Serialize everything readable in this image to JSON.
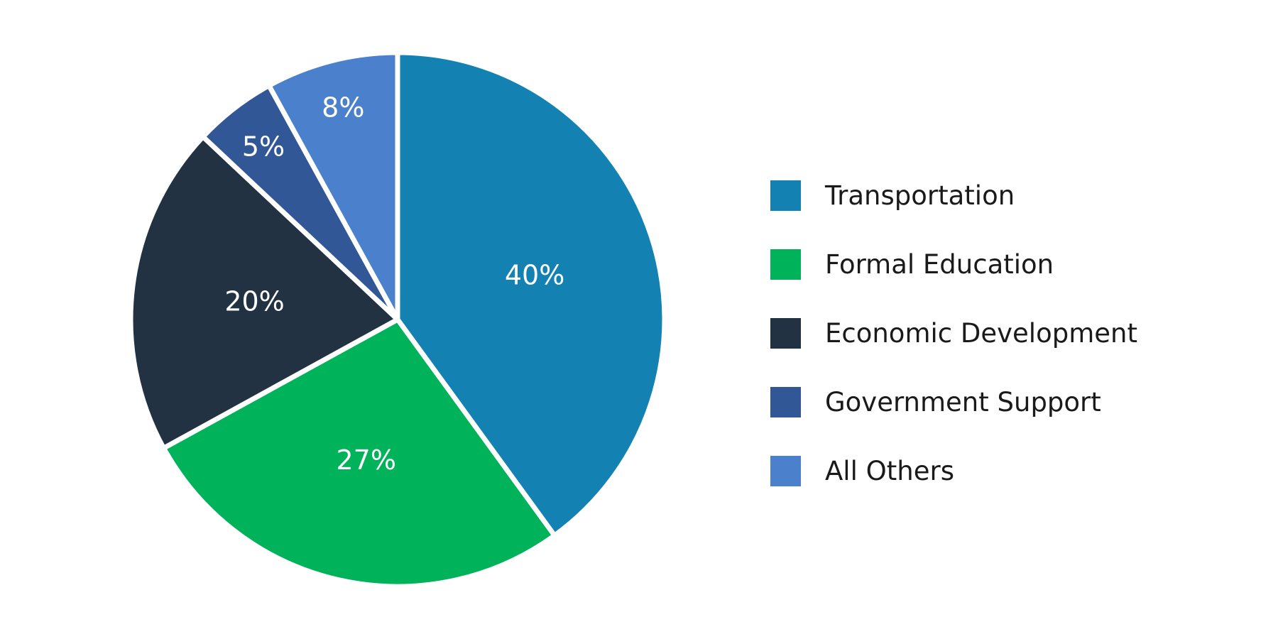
{
  "chart_data": {
    "type": "pie",
    "title": "",
    "categories": [
      "Transportation",
      "Formal Education",
      "Economic Development",
      "Government Support",
      "All Others"
    ],
    "values": [
      40,
      27,
      20,
      5,
      8
    ],
    "labels": [
      "40%",
      "27%",
      "20%",
      "5%",
      "8%"
    ],
    "colors": [
      "#1382b3",
      "#00b25a",
      "#233243",
      "#315797",
      "#4b80cc"
    ],
    "start": "12 o'clock",
    "direction": "clockwise",
    "legend": "right"
  },
  "legend": [
    {
      "label": "Transportation",
      "color": "#1382b3"
    },
    {
      "label": "Formal Education",
      "color": "#00b25a"
    },
    {
      "label": "Economic Development",
      "color": "#233243"
    },
    {
      "label": "Government Support",
      "color": "#315797"
    },
    {
      "label": "All Others",
      "color": "#4b80cc"
    }
  ]
}
